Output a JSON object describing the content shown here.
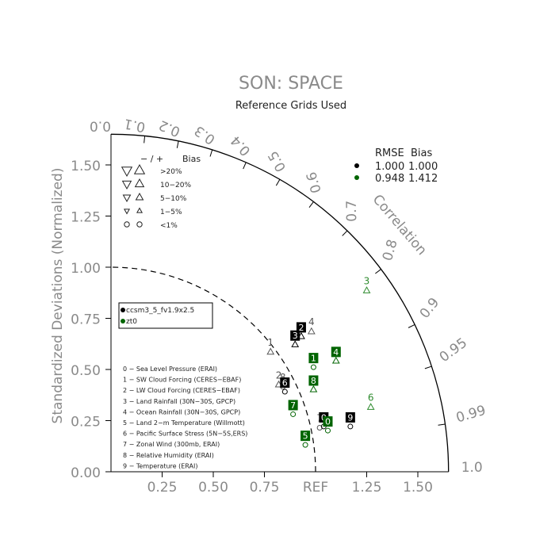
{
  "chart_data": {
    "type": "scatter",
    "title": "SON: SPACE",
    "subtitle": "Reference Grids Used",
    "ylabel": "Standardized Deviations (Normalized)",
    "ref_label": "REF",
    "corr_axis_label": "Correlation",
    "corr_ticks": [
      "0.0",
      "0.1",
      "0.2",
      "0.3",
      "0.4",
      "0.5",
      "0.6",
      "0.7",
      "0.8",
      "0.9",
      "0.95",
      "0.99",
      "1.0"
    ],
    "std_ticks": [
      "0.00",
      "0.25",
      "0.50",
      "0.75",
      "1.00",
      "1.25",
      "1.50"
    ],
    "x_ticks": [
      "0.25",
      "0.50",
      "0.75",
      "1.25",
      "1.50"
    ],
    "std_max": 1.65,
    "bias_legend": {
      "header": [
        "− / +",
        "Bias"
      ],
      "rows": [
        ">20%",
        "10−20%",
        "5−10%",
        "1−5%",
        "<1%"
      ]
    },
    "rmse_legend": {
      "header": [
        "RMSE",
        "Bias"
      ],
      "rows": [
        {
          "rmse": "1.000",
          "bias": "1.000",
          "color": "#000000"
        },
        {
          "rmse": "0.948",
          "bias": "1.412",
          "color": "#006400"
        }
      ]
    },
    "case_legend": [
      {
        "name": "ccsm3_5_fv1.9x2.5",
        "color": "#000000"
      },
      {
        "name": "zt0",
        "color": "#006400"
      }
    ],
    "variables": [
      "0 − Sea Level Pressure (ERAI)",
      "1 − SW Cloud Forcing (CERES−EBAF)",
      "2 − LW Cloud Forcing (CERES−EBAF)",
      "3 − Land Rainfall (30N−30S, GPCP)",
      "4 − Ocean Rainfall (30N−30S, GPCP)",
      "5 − Land 2−m Temperature (Willmott)",
      "6 − Pacific Surface Stress (5N−5S,ERS)",
      "7 − Zonal Wind (300mb, ERAI)",
      "8 − Relative Humidity (ERAI)",
      "9 − Temperature (ERAI)"
    ],
    "series": [
      {
        "name": "ccsm3_5_fv1.9x2.5",
        "color": "#000000",
        "points": [
          {
            "id": "0",
            "x": 1.04,
            "y": 0.26,
            "marker": "circle"
          },
          {
            "id": "2",
            "x": 0.93,
            "y": 0.7,
            "marker": "up"
          },
          {
            "id": "3",
            "x": 0.9,
            "y": 0.66,
            "marker": "up"
          },
          {
            "id": "6",
            "x": 0.85,
            "y": 0.43,
            "marker": "circle"
          },
          {
            "id": "9",
            "x": 1.17,
            "y": 0.26,
            "marker": "circle"
          }
        ]
      },
      {
        "name": "zt0",
        "color": "#006400",
        "points": [
          {
            "id": "0",
            "x": 1.06,
            "y": 0.24,
            "marker": "circle"
          },
          {
            "id": "1",
            "x": 0.99,
            "y": 0.55,
            "marker": "circle"
          },
          {
            "id": "4",
            "x": 1.1,
            "y": 0.58,
            "marker": "up"
          },
          {
            "id": "5",
            "x": 0.95,
            "y": 0.17,
            "marker": "circle"
          },
          {
            "id": "7",
            "x": 0.89,
            "y": 0.32,
            "marker": "circle"
          },
          {
            "id": "8",
            "x": 0.99,
            "y": 0.44,
            "marker": "up"
          }
        ]
      }
    ],
    "labels_only": [
      {
        "id": "4",
        "x": 0.98,
        "y": 0.72,
        "marker": "up",
        "color": "#555555"
      },
      {
        "id": "1",
        "x": 0.78,
        "y": 0.62,
        "marker": "up",
        "color": "#555555"
      },
      {
        "id": "2",
        "x": 0.82,
        "y": 0.46,
        "marker": "up",
        "color": "#555555"
      },
      {
        "id": "8",
        "x": 0.84,
        "y": 0.45,
        "marker": "circle",
        "color": "#555555"
      },
      {
        "id": "7",
        "x": 1.02,
        "y": 0.25,
        "marker": "circle",
        "color": "#555555"
      },
      {
        "id": "3",
        "x": 1.25,
        "y": 0.92,
        "marker": "up",
        "color": "#2e8b2e"
      },
      {
        "id": "6",
        "x": 1.27,
        "y": 0.35,
        "marker": "up",
        "color": "#2e8b2e"
      }
    ]
  }
}
